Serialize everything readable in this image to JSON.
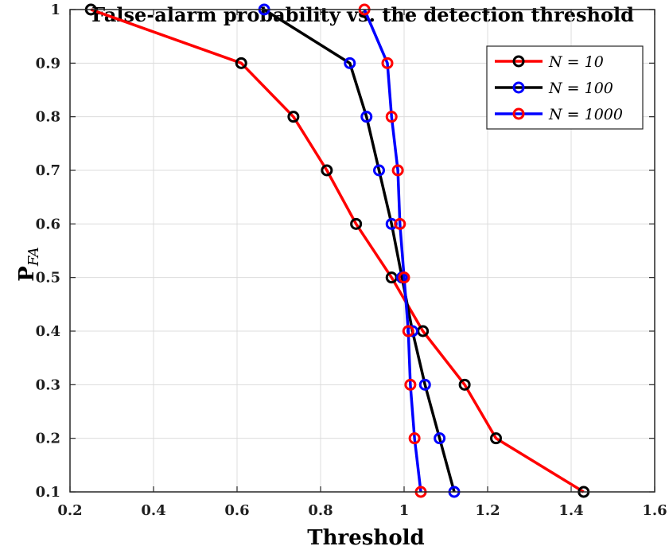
{
  "chart_data": {
    "type": "line",
    "title": "False-alarm probability vs. the detection threshold",
    "xlabel": "Threshold",
    "ylabel": "P",
    "ylabel_sub": "FA",
    "xlim": [
      0.2,
      1.6
    ],
    "ylim": [
      0.1,
      1.0
    ],
    "xticks": [
      0.2,
      0.4,
      0.6,
      0.8,
      1.0,
      1.2,
      1.4,
      1.6
    ],
    "xtick_labels": [
      "0.2",
      "0.4",
      "0.6",
      "0.8",
      "1",
      "1.2",
      "1.4",
      "1.6"
    ],
    "yticks": [
      0.1,
      0.2,
      0.3,
      0.4,
      0.5,
      0.6,
      0.7,
      0.8,
      0.9,
      1.0
    ],
    "ytick_labels": [
      "0.1",
      "0.2",
      "0.3",
      "0.4",
      "0.5",
      "0.6",
      "0.7",
      "0.8",
      "0.9",
      "1"
    ],
    "grid": true,
    "legend_position": "top-right",
    "series": [
      {
        "name": "N = 10",
        "line_color": "#ff0000",
        "marker_color": "#000000",
        "points": [
          {
            "x": 0.25,
            "y": 1.0
          },
          {
            "x": 0.61,
            "y": 0.9
          },
          {
            "x": 0.735,
            "y": 0.8
          },
          {
            "x": 0.815,
            "y": 0.7
          },
          {
            "x": 0.885,
            "y": 0.6
          },
          {
            "x": 0.97,
            "y": 0.5
          },
          {
            "x": 1.045,
            "y": 0.4
          },
          {
            "x": 1.145,
            "y": 0.3
          },
          {
            "x": 1.22,
            "y": 0.2
          },
          {
            "x": 1.43,
            "y": 0.1
          }
        ]
      },
      {
        "name": "N = 100",
        "line_color": "#000000",
        "marker_color": "#0000ff",
        "points": [
          {
            "x": 0.665,
            "y": 1.0
          },
          {
            "x": 0.87,
            "y": 0.9
          },
          {
            "x": 0.91,
            "y": 0.8
          },
          {
            "x": 0.94,
            "y": 0.7
          },
          {
            "x": 0.97,
            "y": 0.6
          },
          {
            "x": 0.995,
            "y": 0.5
          },
          {
            "x": 1.02,
            "y": 0.4
          },
          {
            "x": 1.05,
            "y": 0.3
          },
          {
            "x": 1.085,
            "y": 0.2
          },
          {
            "x": 1.12,
            "y": 0.1
          }
        ]
      },
      {
        "name": "N = 1000",
        "line_color": "#0000ff",
        "marker_color": "#ff0000",
        "points": [
          {
            "x": 0.905,
            "y": 1.0
          },
          {
            "x": 0.96,
            "y": 0.9
          },
          {
            "x": 0.97,
            "y": 0.8
          },
          {
            "x": 0.985,
            "y": 0.7
          },
          {
            "x": 0.99,
            "y": 0.6
          },
          {
            "x": 1.0,
            "y": 0.5
          },
          {
            "x": 1.01,
            "y": 0.4
          },
          {
            "x": 1.015,
            "y": 0.3
          },
          {
            "x": 1.025,
            "y": 0.2
          },
          {
            "x": 1.04,
            "y": 0.1
          }
        ]
      }
    ]
  }
}
